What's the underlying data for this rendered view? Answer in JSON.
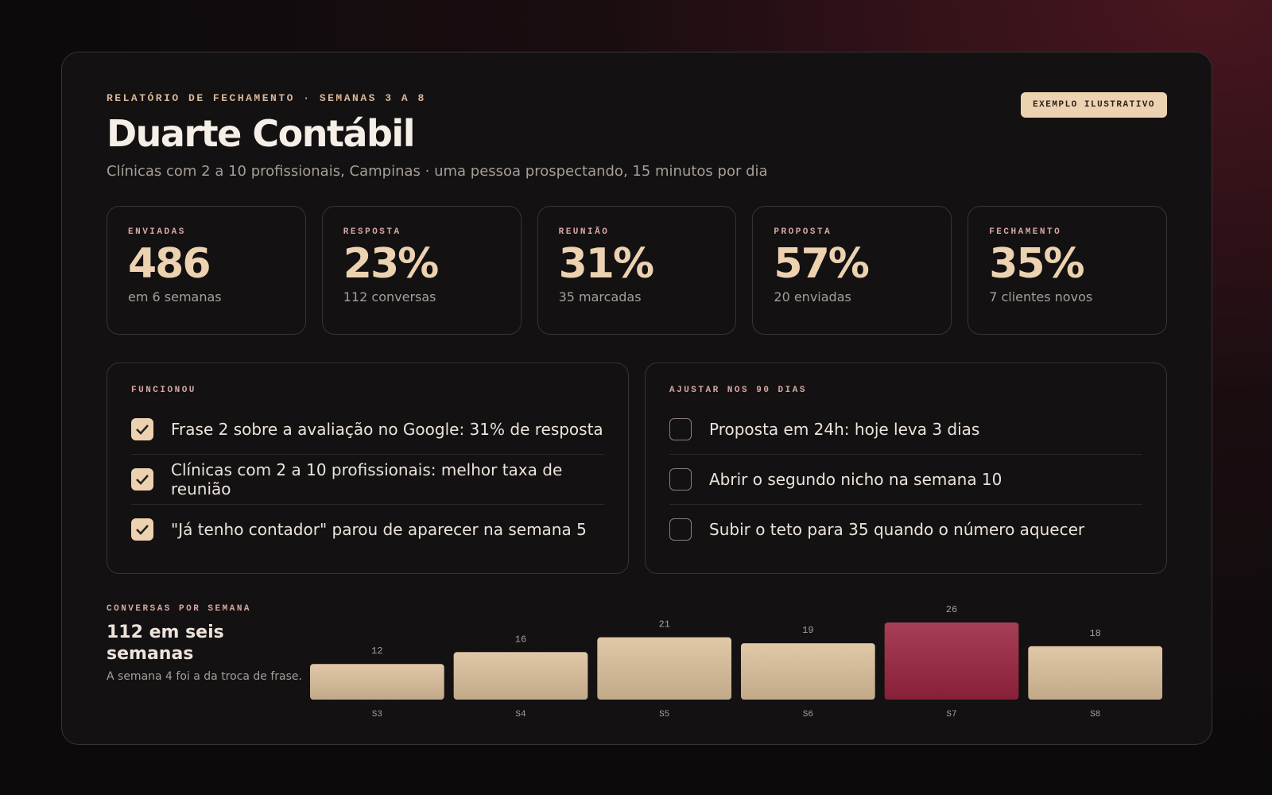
{
  "header": {
    "eyebrow": "RELATÓRIO DE FECHAMENTO · SEMANAS 3 A 8",
    "title": "Duarte Contábil",
    "subtitle": "Clínicas com 2 a 10 profissionais, Campinas · uma pessoa prospectando, 15 minutos por dia",
    "badge": "EXEMPLO ILUSTRATIVO"
  },
  "kpis": [
    {
      "label": "ENVIADAS",
      "value": "486",
      "note": "em 6 semanas"
    },
    {
      "label": "RESPOSTA",
      "value": "23%",
      "note": "112 conversas"
    },
    {
      "label": "REUNIÃO",
      "value": "31%",
      "note": "35 marcadas"
    },
    {
      "label": "PROPOSTA",
      "value": "57%",
      "note": "20 enviadas"
    },
    {
      "label": "FECHAMENTO",
      "value": "35%",
      "note": "7 clientes novos"
    }
  ],
  "lists": [
    {
      "title": "FUNCIONOU",
      "checked": true,
      "items": [
        "Frase 2 sobre a avaliação no Google: 31% de resposta",
        "Clínicas com 2 a 10 profissionais: melhor taxa de reunião",
        "\"Já tenho contador\" parou de aparecer na semana 5"
      ]
    },
    {
      "title": "AJUSTAR NOS 90 DIAS",
      "checked": false,
      "items": [
        "Proposta em 24h: hoje leva 3 dias",
        "Abrir o segundo nicho na semana 10",
        "Subir o teto para 35 quando o número aquecer"
      ]
    }
  ],
  "chart_data": {
    "type": "bar",
    "eyebrow": "CONVERSAS POR SEMANA",
    "title": "112 em seis semanas",
    "subtitle": "A semana 4 foi a da troca de frase.",
    "categories": [
      "S3",
      "S4",
      "S5",
      "S6",
      "S7",
      "S8"
    ],
    "values": [
      12,
      16,
      21,
      19,
      26,
      18
    ],
    "colors": [
      "#dcc09c",
      "#dcc09c",
      "#dcc09c",
      "#dcc09c",
      "#9a2440",
      "#dcc09c"
    ]
  }
}
